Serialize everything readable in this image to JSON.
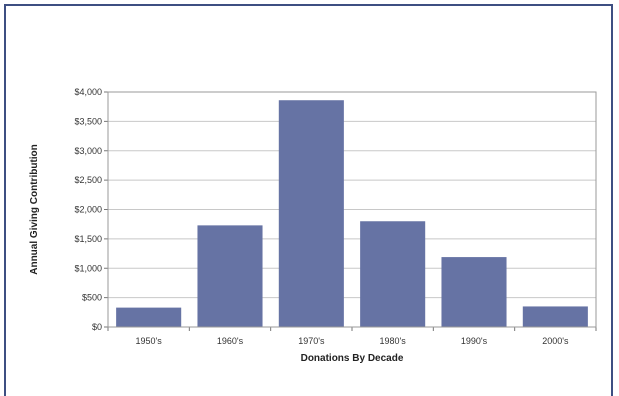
{
  "chart_data": {
    "type": "bar",
    "categories": [
      "1950's",
      "1960's",
      "1970's",
      "1980's",
      "1990's",
      "2000's"
    ],
    "values": [
      330,
      1730,
      3860,
      1800,
      1190,
      350
    ],
    "xlabel": "Donations By Decade",
    "ylabel": "Annual Giving Contribution",
    "ylim": [
      0,
      4000
    ],
    "yticks": [
      0,
      500,
      1000,
      1500,
      2000,
      2500,
      3000,
      3500,
      4000
    ],
    "ytick_labels": [
      "$0",
      "$500",
      "$1,000",
      "$1,500",
      "$2,000",
      "$2,500",
      "$3,000",
      "$3,500",
      "$4,000"
    ],
    "grid": true,
    "legend": "none",
    "bar_color": "#6673a4",
    "grid_color": "#c8c8c8",
    "frame_color": "#3d4f82"
  }
}
